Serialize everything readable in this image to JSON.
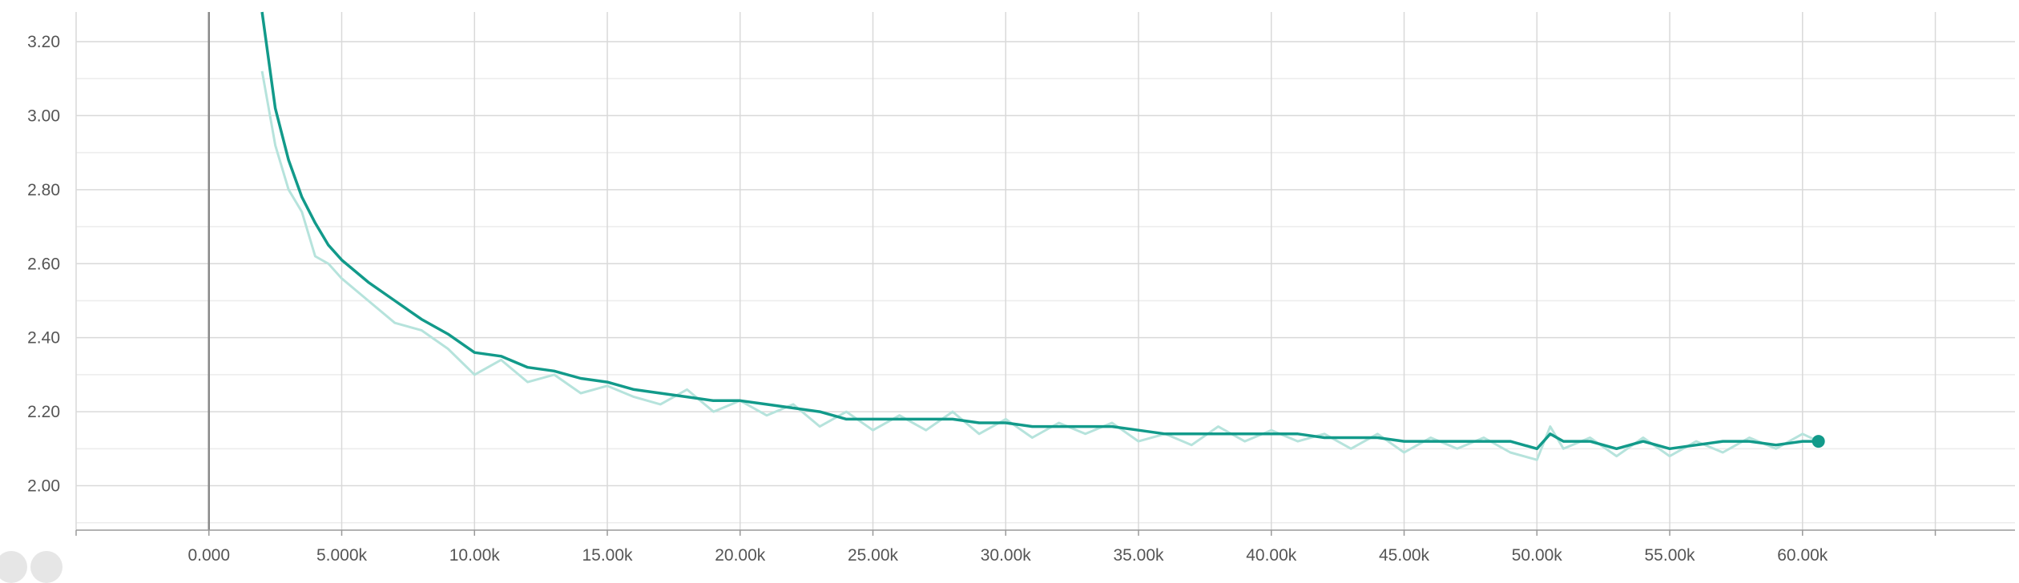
{
  "chart_data": {
    "type": "line",
    "title": "",
    "xlabel": "",
    "ylabel": "",
    "xlim": [
      -5000,
      68000
    ],
    "ylim": [
      1.88,
      3.28
    ],
    "grid": true,
    "legend": "none",
    "x_ticks": [
      0,
      5000,
      10000,
      15000,
      20000,
      25000,
      30000,
      35000,
      40000,
      45000,
      50000,
      55000,
      60000
    ],
    "x_tick_labels": [
      "0.000",
      "5.000k",
      "10.00k",
      "15.00k",
      "20.00k",
      "25.00k",
      "30.00k",
      "35.00k",
      "40.00k",
      "45.00k",
      "50.00k",
      "55.00k",
      "60.00k"
    ],
    "y_ticks": [
      2.0,
      2.2,
      2.4,
      2.6,
      2.8,
      3.0,
      3.2
    ],
    "y_tick_labels": [
      "2.00",
      "2.20",
      "2.40",
      "2.60",
      "2.80",
      "3.00",
      "3.20"
    ],
    "colors": {
      "smoothed": "#129a8a",
      "raw": "#b6e3dc",
      "grid": "#d9d9d9",
      "zero_axis": "#8a8a8a"
    },
    "series": [
      {
        "role": "smoothed",
        "x": [
          2000,
          2500,
          3000,
          3500,
          4000,
          4500,
          5000,
          6000,
          7000,
          8000,
          9000,
          10000,
          11000,
          12000,
          13000,
          14000,
          15000,
          16000,
          17000,
          18000,
          19000,
          20000,
          21000,
          22000,
          23000,
          24000,
          25000,
          26000,
          27000,
          28000,
          29000,
          30000,
          31000,
          32000,
          33000,
          34000,
          35000,
          36000,
          37000,
          38000,
          39000,
          40000,
          41000,
          42000,
          43000,
          44000,
          45000,
          46000,
          47000,
          48000,
          49000,
          50000,
          50500,
          51000,
          52000,
          53000,
          54000,
          55000,
          56000,
          57000,
          58000,
          59000,
          60000,
          60600
        ],
        "y": [
          3.28,
          3.02,
          2.88,
          2.78,
          2.71,
          2.65,
          2.61,
          2.55,
          2.5,
          2.45,
          2.41,
          2.36,
          2.35,
          2.32,
          2.31,
          2.29,
          2.28,
          2.26,
          2.25,
          2.24,
          2.23,
          2.23,
          2.22,
          2.21,
          2.2,
          2.18,
          2.18,
          2.18,
          2.18,
          2.18,
          2.17,
          2.17,
          2.16,
          2.16,
          2.16,
          2.16,
          2.15,
          2.14,
          2.14,
          2.14,
          2.14,
          2.14,
          2.14,
          2.13,
          2.13,
          2.13,
          2.12,
          2.12,
          2.12,
          2.12,
          2.12,
          2.1,
          2.14,
          2.12,
          2.12,
          2.1,
          2.12,
          2.1,
          2.11,
          2.12,
          2.12,
          2.11,
          2.12,
          2.12
        ]
      },
      {
        "role": "raw",
        "x": [
          2000,
          2500,
          3000,
          3500,
          4000,
          4500,
          5000,
          6000,
          7000,
          8000,
          9000,
          10000,
          11000,
          12000,
          13000,
          14000,
          15000,
          16000,
          17000,
          18000,
          19000,
          20000,
          21000,
          22000,
          23000,
          24000,
          25000,
          26000,
          27000,
          28000,
          29000,
          30000,
          31000,
          32000,
          33000,
          34000,
          35000,
          36000,
          37000,
          38000,
          39000,
          40000,
          41000,
          42000,
          43000,
          44000,
          45000,
          46000,
          47000,
          48000,
          49000,
          50000,
          50500,
          51000,
          52000,
          53000,
          54000,
          55000,
          56000,
          57000,
          58000,
          59000,
          60000,
          60600
        ],
        "y": [
          3.12,
          2.92,
          2.8,
          2.74,
          2.62,
          2.6,
          2.56,
          2.5,
          2.44,
          2.42,
          2.37,
          2.3,
          2.34,
          2.28,
          2.3,
          2.25,
          2.27,
          2.24,
          2.22,
          2.26,
          2.2,
          2.23,
          2.19,
          2.22,
          2.16,
          2.2,
          2.15,
          2.19,
          2.15,
          2.2,
          2.14,
          2.18,
          2.13,
          2.17,
          2.14,
          2.17,
          2.12,
          2.14,
          2.11,
          2.16,
          2.12,
          2.15,
          2.12,
          2.14,
          2.1,
          2.14,
          2.09,
          2.13,
          2.1,
          2.13,
          2.09,
          2.07,
          2.16,
          2.1,
          2.13,
          2.08,
          2.13,
          2.08,
          2.12,
          2.09,
          2.13,
          2.1,
          2.14,
          2.12
        ]
      }
    ]
  }
}
